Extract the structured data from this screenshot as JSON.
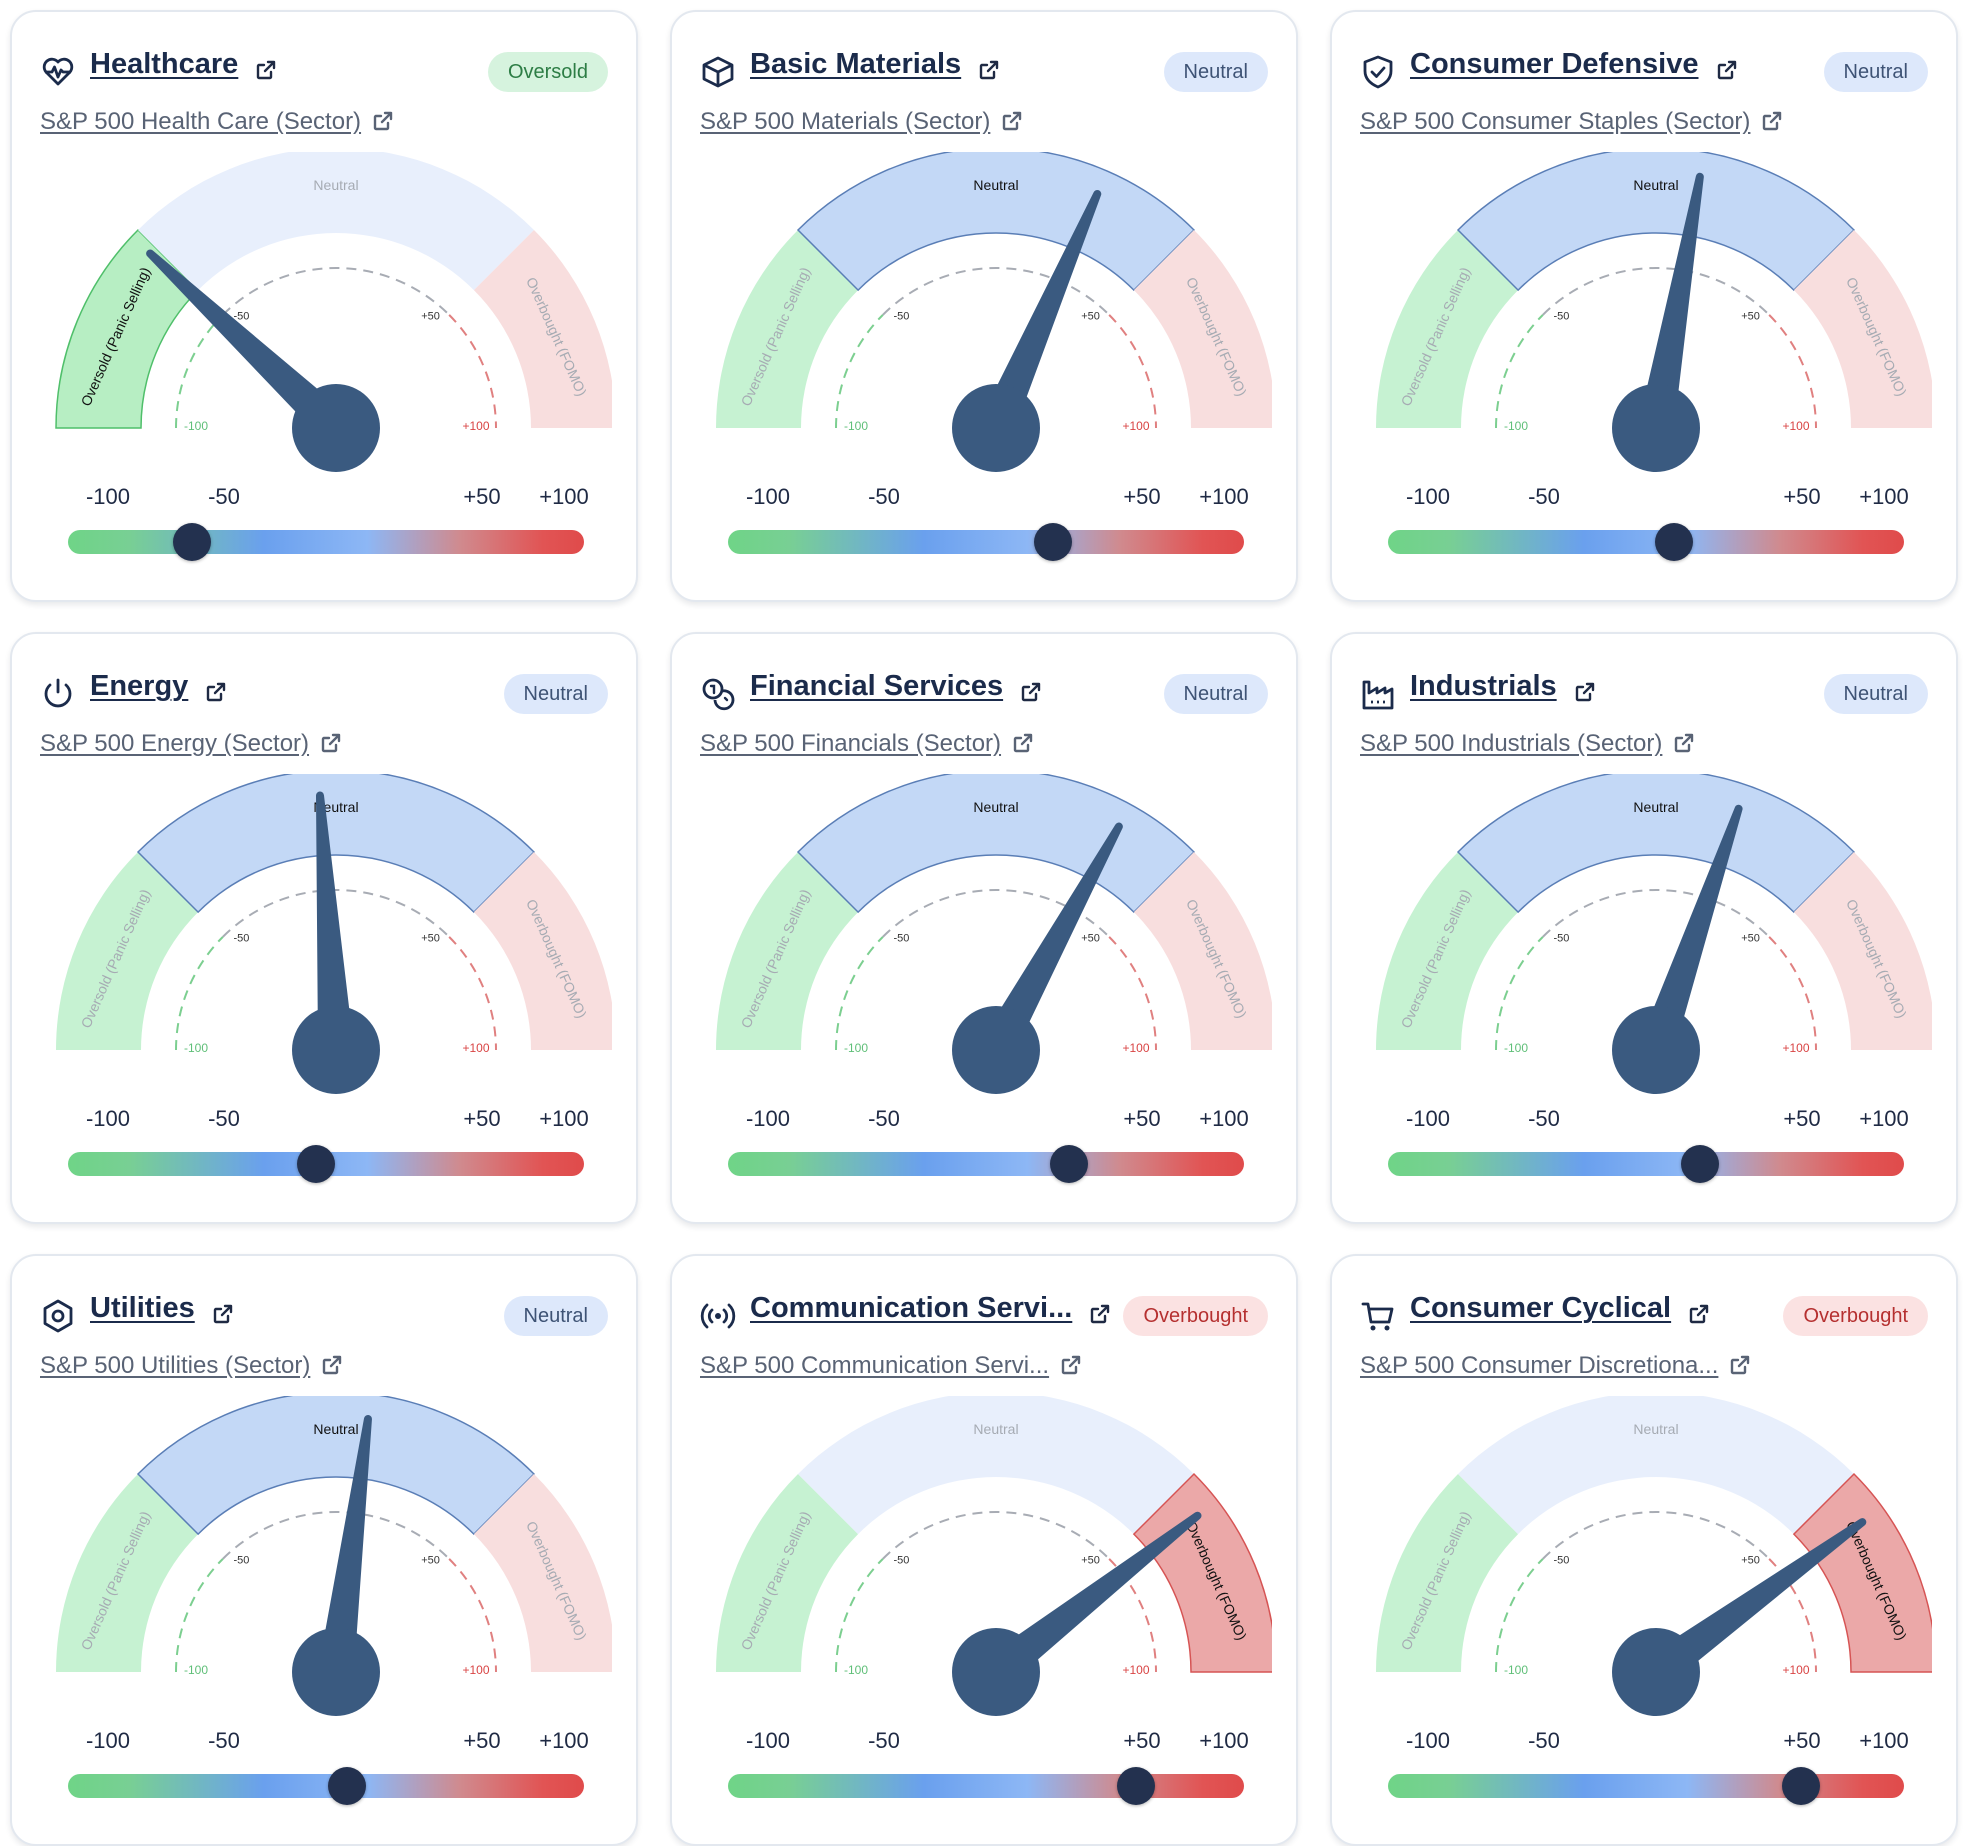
{
  "colors": {
    "needle": "#3a5a80",
    "oversold_active": "#b7eec3",
    "oversold_inactive": "#c6f2d2",
    "neutral_active": "#c3d8f6",
    "neutral_inactive": "#e8effc",
    "overbought_active": "#eba8a8",
    "overbought_inactive": "#f8dede"
  },
  "gauge_labels": {
    "oversold": "Oversold (Panic Selling)",
    "neutral": "Neutral",
    "overbought": "Overbought (FOMO)",
    "inner_minus50": "-50",
    "inner_plus50": "+50",
    "inner_minus100": "-100",
    "inner_plus100": "+100"
  },
  "scale_ticks": [
    "-100",
    "-50",
    "+50",
    "+100"
  ],
  "cards": [
    {
      "title": "Healthcare",
      "icon": "heart-pulse-icon",
      "badge": "Oversold",
      "status": "oversold",
      "index": "S&P 500 Health Care (Sector)",
      "value": -52
    },
    {
      "title": "Basic Materials",
      "icon": "box-icon",
      "badge": "Neutral",
      "status": "neutral",
      "index": "S&P 500 Materials (Sector)",
      "value": 26
    },
    {
      "title": "Consumer Defensive",
      "icon": "shield-check-icon",
      "badge": "Neutral",
      "status": "neutral",
      "index": "S&P 500 Consumer Staples (Sector)",
      "value": 11
    },
    {
      "title": "Energy",
      "icon": "power-icon",
      "badge": "Neutral",
      "status": "neutral",
      "index": "S&P 500 Energy (Sector)",
      "value": -4
    },
    {
      "title": "Financial Services",
      "icon": "coins-icon",
      "badge": "Neutral",
      "status": "neutral",
      "index": "S&P 500 Financials (Sector)",
      "value": 32
    },
    {
      "title": "Industrials",
      "icon": "factory-icon",
      "badge": "Neutral",
      "status": "neutral",
      "index": "S&P 500 Industrials (Sector)",
      "value": 21
    },
    {
      "title": "Utilities",
      "icon": "settings-hex-icon",
      "badge": "Neutral",
      "status": "neutral",
      "index": "S&P 500 Utilities (Sector)",
      "value": 8
    },
    {
      "title": "Communication Servi...",
      "icon": "broadcast-icon",
      "badge": "Overbought",
      "status": "overbought",
      "index": "S&P 500 Communication Servi...",
      "value": 58
    },
    {
      "title": "Consumer Cyclical",
      "icon": "shopping-cart-icon",
      "badge": "Overbought",
      "status": "overbought",
      "index": "S&P 500 Consumer Discretiona...",
      "value": 60
    }
  ]
}
